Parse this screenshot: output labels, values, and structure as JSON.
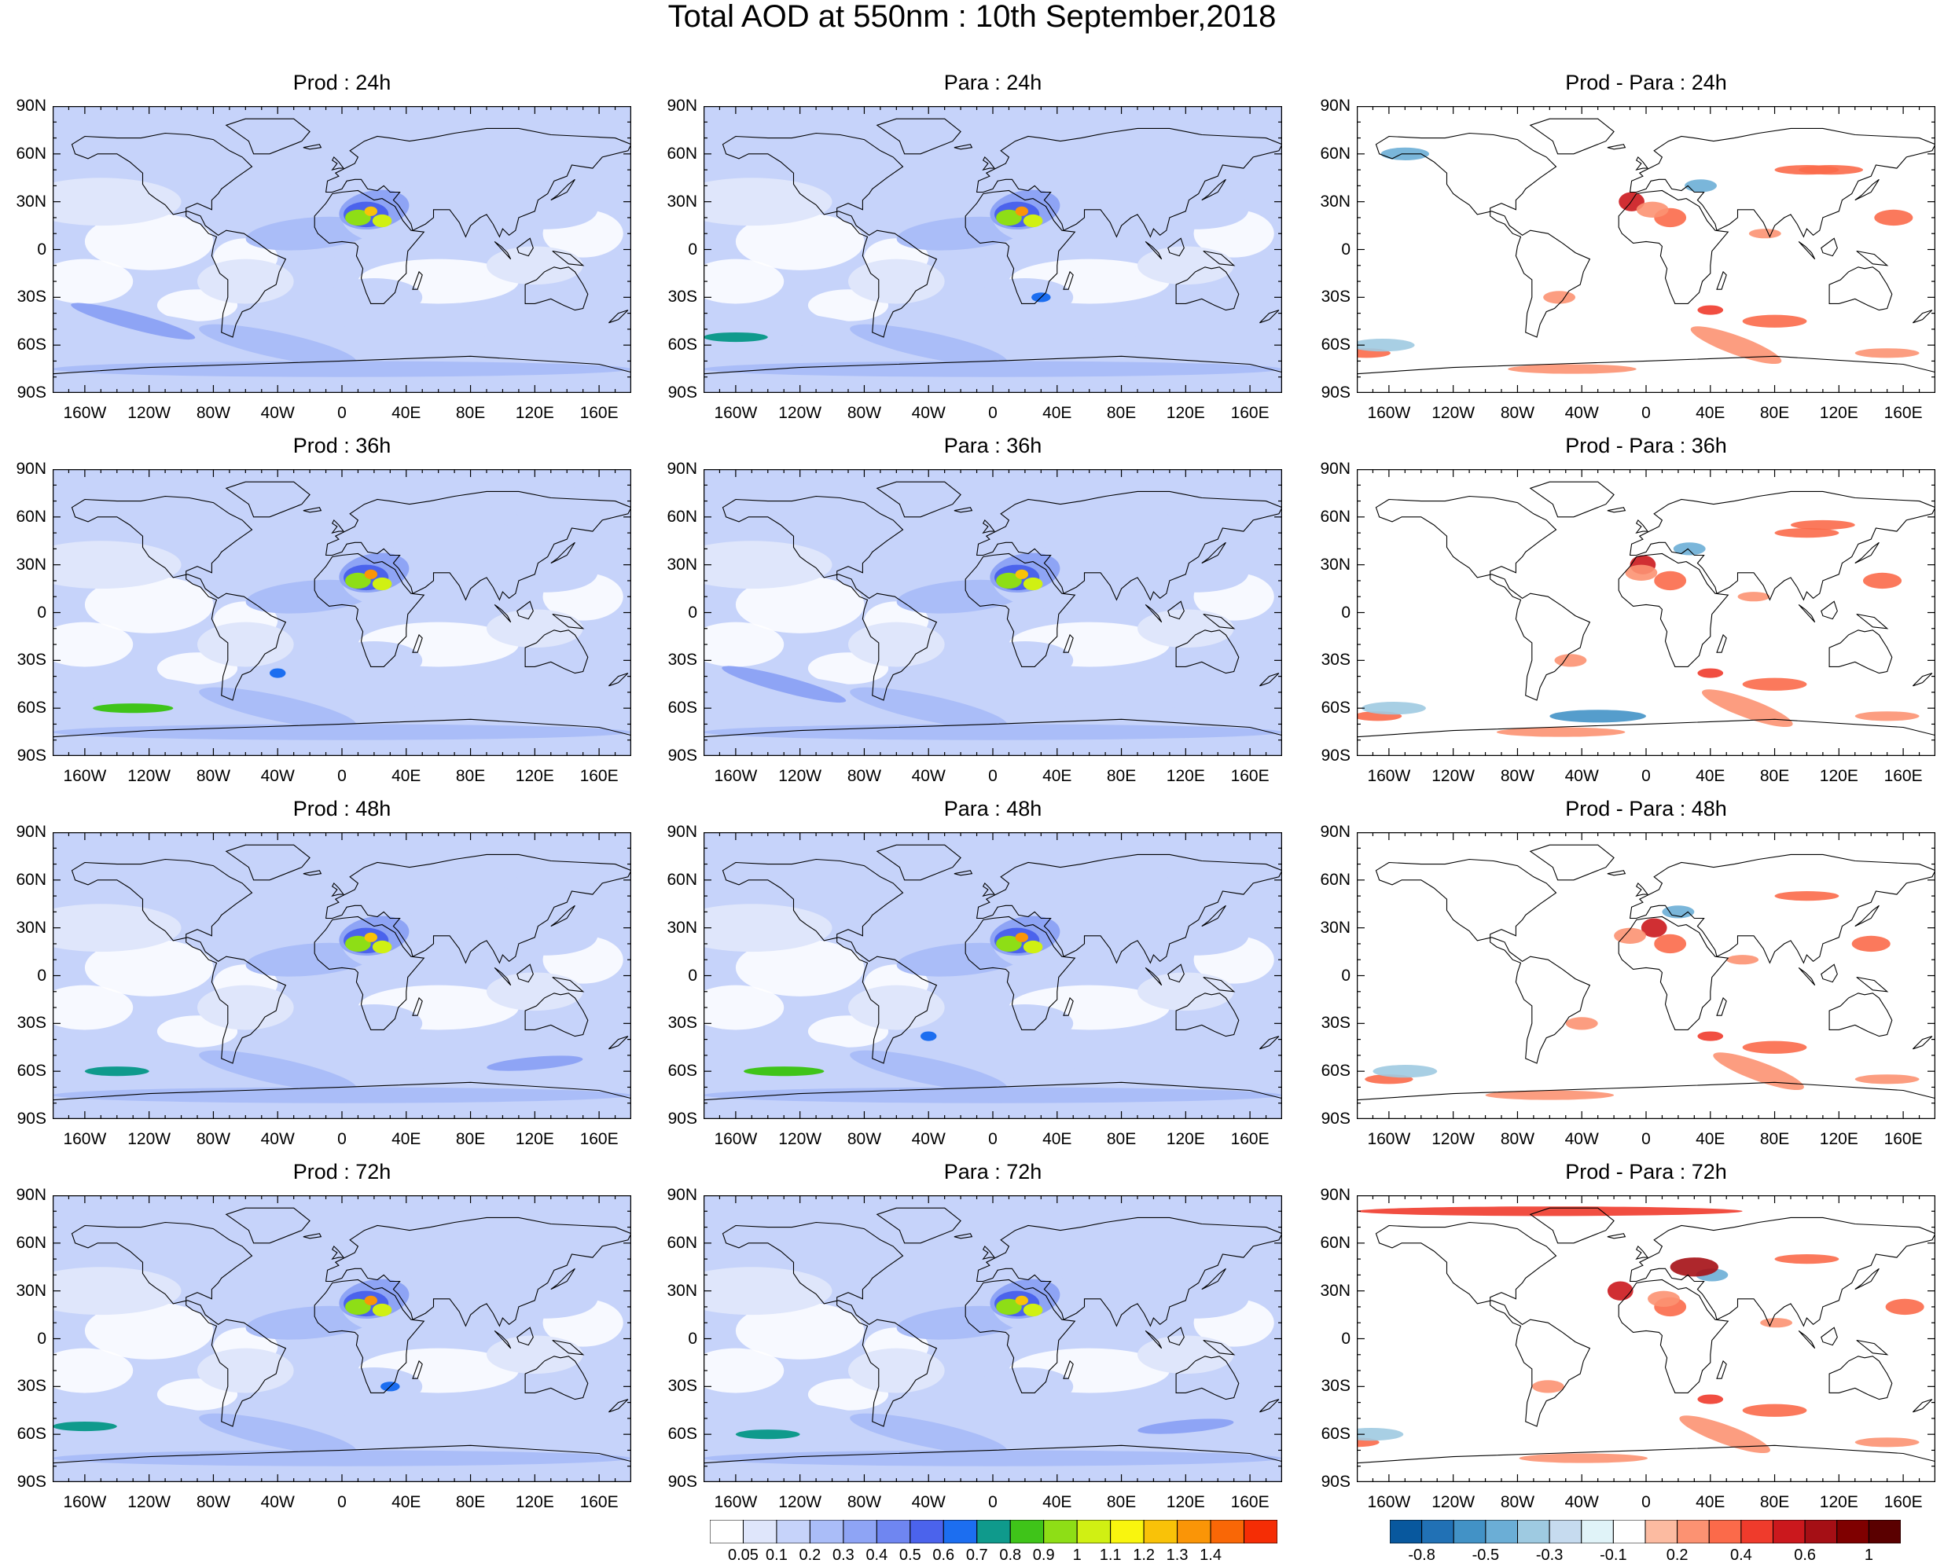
{
  "title": "Total AOD at 550nm : 10th September,2018",
  "lat_labels": [
    "90N",
    "60N",
    "30N",
    "0",
    "30S",
    "60S",
    "90S"
  ],
  "lon_labels": [
    "160W",
    "120W",
    "80W",
    "40W",
    "0",
    "40E",
    "80E",
    "120E",
    "160E"
  ],
  "panels": [
    {
      "title": "Prod : 24h",
      "kind": "aod"
    },
    {
      "title": "Para : 24h",
      "kind": "aod"
    },
    {
      "title": "Prod - Para : 24h",
      "kind": "diff"
    },
    {
      "title": "Prod : 36h",
      "kind": "aod"
    },
    {
      "title": "Para : 36h",
      "kind": "aod"
    },
    {
      "title": "Prod - Para : 36h",
      "kind": "diff"
    },
    {
      "title": "Prod : 48h",
      "kind": "aod"
    },
    {
      "title": "Para : 48h",
      "kind": "aod"
    },
    {
      "title": "Prod - Para : 48h",
      "kind": "diff"
    },
    {
      "title": "Prod : 72h",
      "kind": "aod"
    },
    {
      "title": "Para : 72h",
      "kind": "aod"
    },
    {
      "title": "Prod - Para : 72h",
      "kind": "diff"
    }
  ],
  "aod_colorbar": {
    "labels": [
      "0.05",
      "0.1",
      "0.2",
      "0.3",
      "0.4",
      "0.5",
      "0.6",
      "0.7",
      "0.8",
      "0.9",
      "1",
      "1.1",
      "1.2",
      "1.3",
      "1.4"
    ],
    "colors": [
      "#ffffff",
      "#dfe6fb",
      "#c6d3fa",
      "#aabdf8",
      "#8ea4f5",
      "#6f86f1",
      "#4b63ec",
      "#1c6ef0",
      "#0f9a8c",
      "#3fc419",
      "#8ede16",
      "#d0f013",
      "#f9f50e",
      "#f9c208",
      "#fa9507",
      "#f96706",
      "#f52d05"
    ]
  },
  "diff_colorbar": {
    "labels": [
      "-0.8",
      "-0.5",
      "-0.3",
      "-0.1",
      "0.2",
      "0.4",
      "0.6",
      "1"
    ],
    "colors": [
      "#08589e",
      "#2171b5",
      "#4292c6",
      "#6baed6",
      "#9ecae1",
      "#c6dbef",
      "#e0f3f8",
      "#ffffff",
      "#fcbba1",
      "#fc9272",
      "#fb6a4a",
      "#ef3b2c",
      "#cb181d",
      "#a50f15",
      "#7f0000",
      "#5a0000"
    ]
  }
}
